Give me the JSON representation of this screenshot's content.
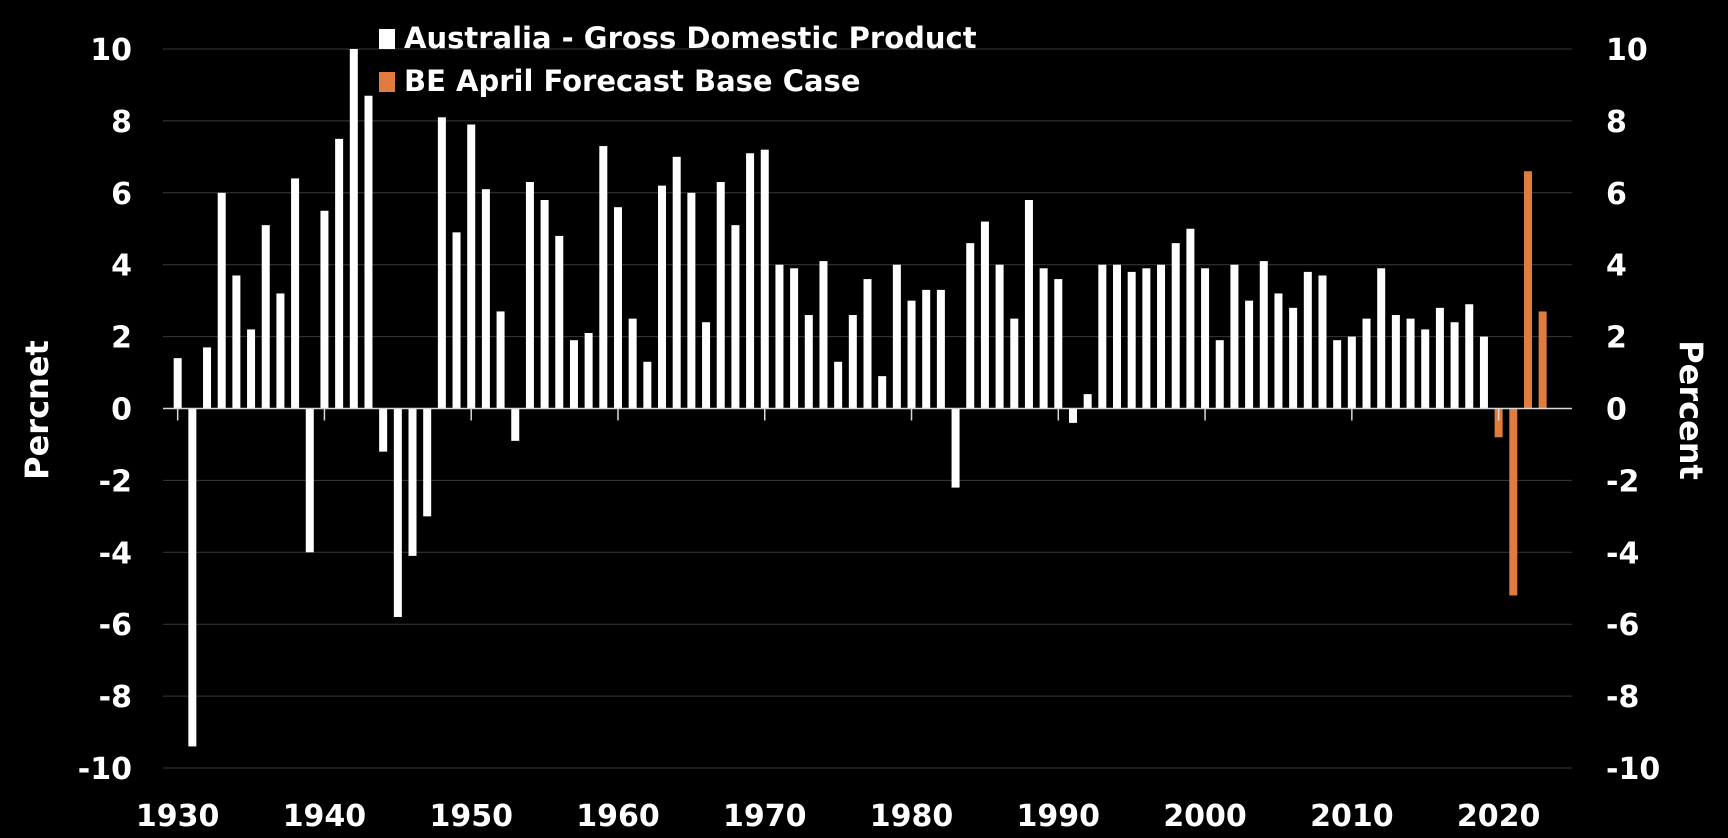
{
  "chart_data": {
    "type": "bar",
    "title": "",
    "xlabel": "",
    "ylabel_left": "Percnet",
    "ylabel_right": "Percent",
    "ylim": [
      -10,
      10
    ],
    "yticks": [
      10,
      8,
      6,
      4,
      2,
      0,
      -2,
      -4,
      -6,
      -8,
      -10
    ],
    "xlim": [
      1929,
      2025
    ],
    "xticks": [
      1930,
      1940,
      1950,
      1960,
      1970,
      1980,
      1990,
      2000,
      2010,
      2020
    ],
    "grid": true,
    "legend_position": "top-center",
    "series": [
      {
        "name": "Australia - Gross Domestic Product",
        "color": "#ffffff",
        "points": [
          {
            "x": 1930,
            "y": 1.4
          },
          {
            "x": 1931,
            "y": -9.4
          },
          {
            "x": 1932,
            "y": 1.7
          },
          {
            "x": 1933,
            "y": 6.0
          },
          {
            "x": 1934,
            "y": 3.7
          },
          {
            "x": 1935,
            "y": 2.2
          },
          {
            "x": 1936,
            "y": 5.1
          },
          {
            "x": 1937,
            "y": 3.2
          },
          {
            "x": 1938,
            "y": 6.4
          },
          {
            "x": 1939,
            "y": -4.0
          },
          {
            "x": 1940,
            "y": 5.5
          },
          {
            "x": 1941,
            "y": 7.5
          },
          {
            "x": 1942,
            "y": 10.0
          },
          {
            "x": 1943,
            "y": 8.7
          },
          {
            "x": 1944,
            "y": -1.2
          },
          {
            "x": 1945,
            "y": -5.8
          },
          {
            "x": 1946,
            "y": -4.1
          },
          {
            "x": 1947,
            "y": -3.0
          },
          {
            "x": 1948,
            "y": 8.1
          },
          {
            "x": 1949,
            "y": 4.9
          },
          {
            "x": 1950,
            "y": 7.9
          },
          {
            "x": 1951,
            "y": 6.1
          },
          {
            "x": 1952,
            "y": 2.7
          },
          {
            "x": 1953,
            "y": -0.9
          },
          {
            "x": 1954,
            "y": 6.3
          },
          {
            "x": 1955,
            "y": 5.8
          },
          {
            "x": 1956,
            "y": 4.8
          },
          {
            "x": 1957,
            "y": 1.9
          },
          {
            "x": 1958,
            "y": 2.1
          },
          {
            "x": 1959,
            "y": 7.3
          },
          {
            "x": 1960,
            "y": 5.6
          },
          {
            "x": 1961,
            "y": 2.5
          },
          {
            "x": 1962,
            "y": 1.3
          },
          {
            "x": 1963,
            "y": 6.2
          },
          {
            "x": 1964,
            "y": 7.0
          },
          {
            "x": 1965,
            "y": 6.0
          },
          {
            "x": 1966,
            "y": 2.4
          },
          {
            "x": 1967,
            "y": 6.3
          },
          {
            "x": 1968,
            "y": 5.1
          },
          {
            "x": 1969,
            "y": 7.1
          },
          {
            "x": 1970,
            "y": 7.2
          },
          {
            "x": 1971,
            "y": 4.0
          },
          {
            "x": 1972,
            "y": 3.9
          },
          {
            "x": 1973,
            "y": 2.6
          },
          {
            "x": 1974,
            "y": 4.1
          },
          {
            "x": 1975,
            "y": 1.3
          },
          {
            "x": 1976,
            "y": 2.6
          },
          {
            "x": 1977,
            "y": 3.6
          },
          {
            "x": 1978,
            "y": 0.9
          },
          {
            "x": 1979,
            "y": 4.0
          },
          {
            "x": 1980,
            "y": 3.0
          },
          {
            "x": 1981,
            "y": 3.3
          },
          {
            "x": 1982,
            "y": 3.3
          },
          {
            "x": 1983,
            "y": -2.2
          },
          {
            "x": 1984,
            "y": 4.6
          },
          {
            "x": 1985,
            "y": 5.2
          },
          {
            "x": 1986,
            "y": 4.0
          },
          {
            "x": 1987,
            "y": 2.5
          },
          {
            "x": 1988,
            "y": 5.8
          },
          {
            "x": 1989,
            "y": 3.9
          },
          {
            "x": 1990,
            "y": 3.6
          },
          {
            "x": 1991,
            "y": -0.4
          },
          {
            "x": 1992,
            "y": 0.4
          },
          {
            "x": 1993,
            "y": 4.0
          },
          {
            "x": 1994,
            "y": 4.0
          },
          {
            "x": 1995,
            "y": 3.8
          },
          {
            "x": 1996,
            "y": 3.9
          },
          {
            "x": 1997,
            "y": 4.0
          },
          {
            "x": 1998,
            "y": 4.6
          },
          {
            "x": 1999,
            "y": 5.0
          },
          {
            "x": 2000,
            "y": 3.9
          },
          {
            "x": 2001,
            "y": 1.9
          },
          {
            "x": 2002,
            "y": 4.0
          },
          {
            "x": 2003,
            "y": 3.0
          },
          {
            "x": 2004,
            "y": 4.1
          },
          {
            "x": 2005,
            "y": 3.2
          },
          {
            "x": 2006,
            "y": 2.8
          },
          {
            "x": 2007,
            "y": 3.8
          },
          {
            "x": 2008,
            "y": 3.7
          },
          {
            "x": 2009,
            "y": 1.9
          },
          {
            "x": 2010,
            "y": 2.0
          },
          {
            "x": 2011,
            "y": 2.5
          },
          {
            "x": 2012,
            "y": 3.9
          },
          {
            "x": 2013,
            "y": 2.6
          },
          {
            "x": 2014,
            "y": 2.5
          },
          {
            "x": 2015,
            "y": 2.2
          },
          {
            "x": 2016,
            "y": 2.8
          },
          {
            "x": 2017,
            "y": 2.4
          },
          {
            "x": 2018,
            "y": 2.9
          },
          {
            "x": 2019,
            "y": 2.0
          }
        ]
      },
      {
        "name": "BE April Forecast Base Case",
        "color": "#e07c3e",
        "points": [
          {
            "x": 2020,
            "y": -0.8
          },
          {
            "x": 2021,
            "y": -5.2
          },
          {
            "x": 2022,
            "y": 6.6
          },
          {
            "x": 2023,
            "y": 2.7
          }
        ]
      }
    ]
  }
}
